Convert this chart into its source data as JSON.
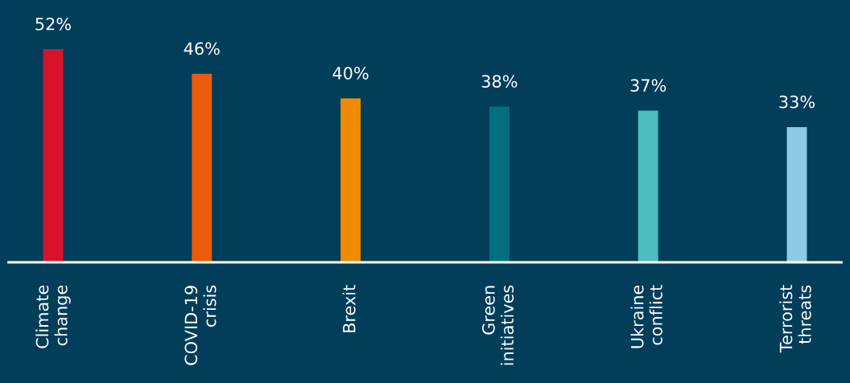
{
  "chart_data": {
    "type": "bar",
    "categories": [
      "Climate\nchange",
      "COVID-19\ncrisis",
      "Brexit",
      "Green\ninitiatives",
      "Ukraine\nconflict",
      "Terrorist\nthreats"
    ],
    "values": [
      52,
      46,
      40,
      38,
      37,
      33
    ],
    "colors": [
      "#d7132b",
      "#ea5b0c",
      "#f08a00",
      "#00707f",
      "#4dbdbd",
      "#8ecae6"
    ],
    "value_labels": [
      "52%",
      "46%",
      "40%",
      "38%",
      "37%",
      "33%"
    ],
    "ylim": [
      0,
      64
    ],
    "tick_labels": "x",
    "grid": false,
    "legend": false
  }
}
